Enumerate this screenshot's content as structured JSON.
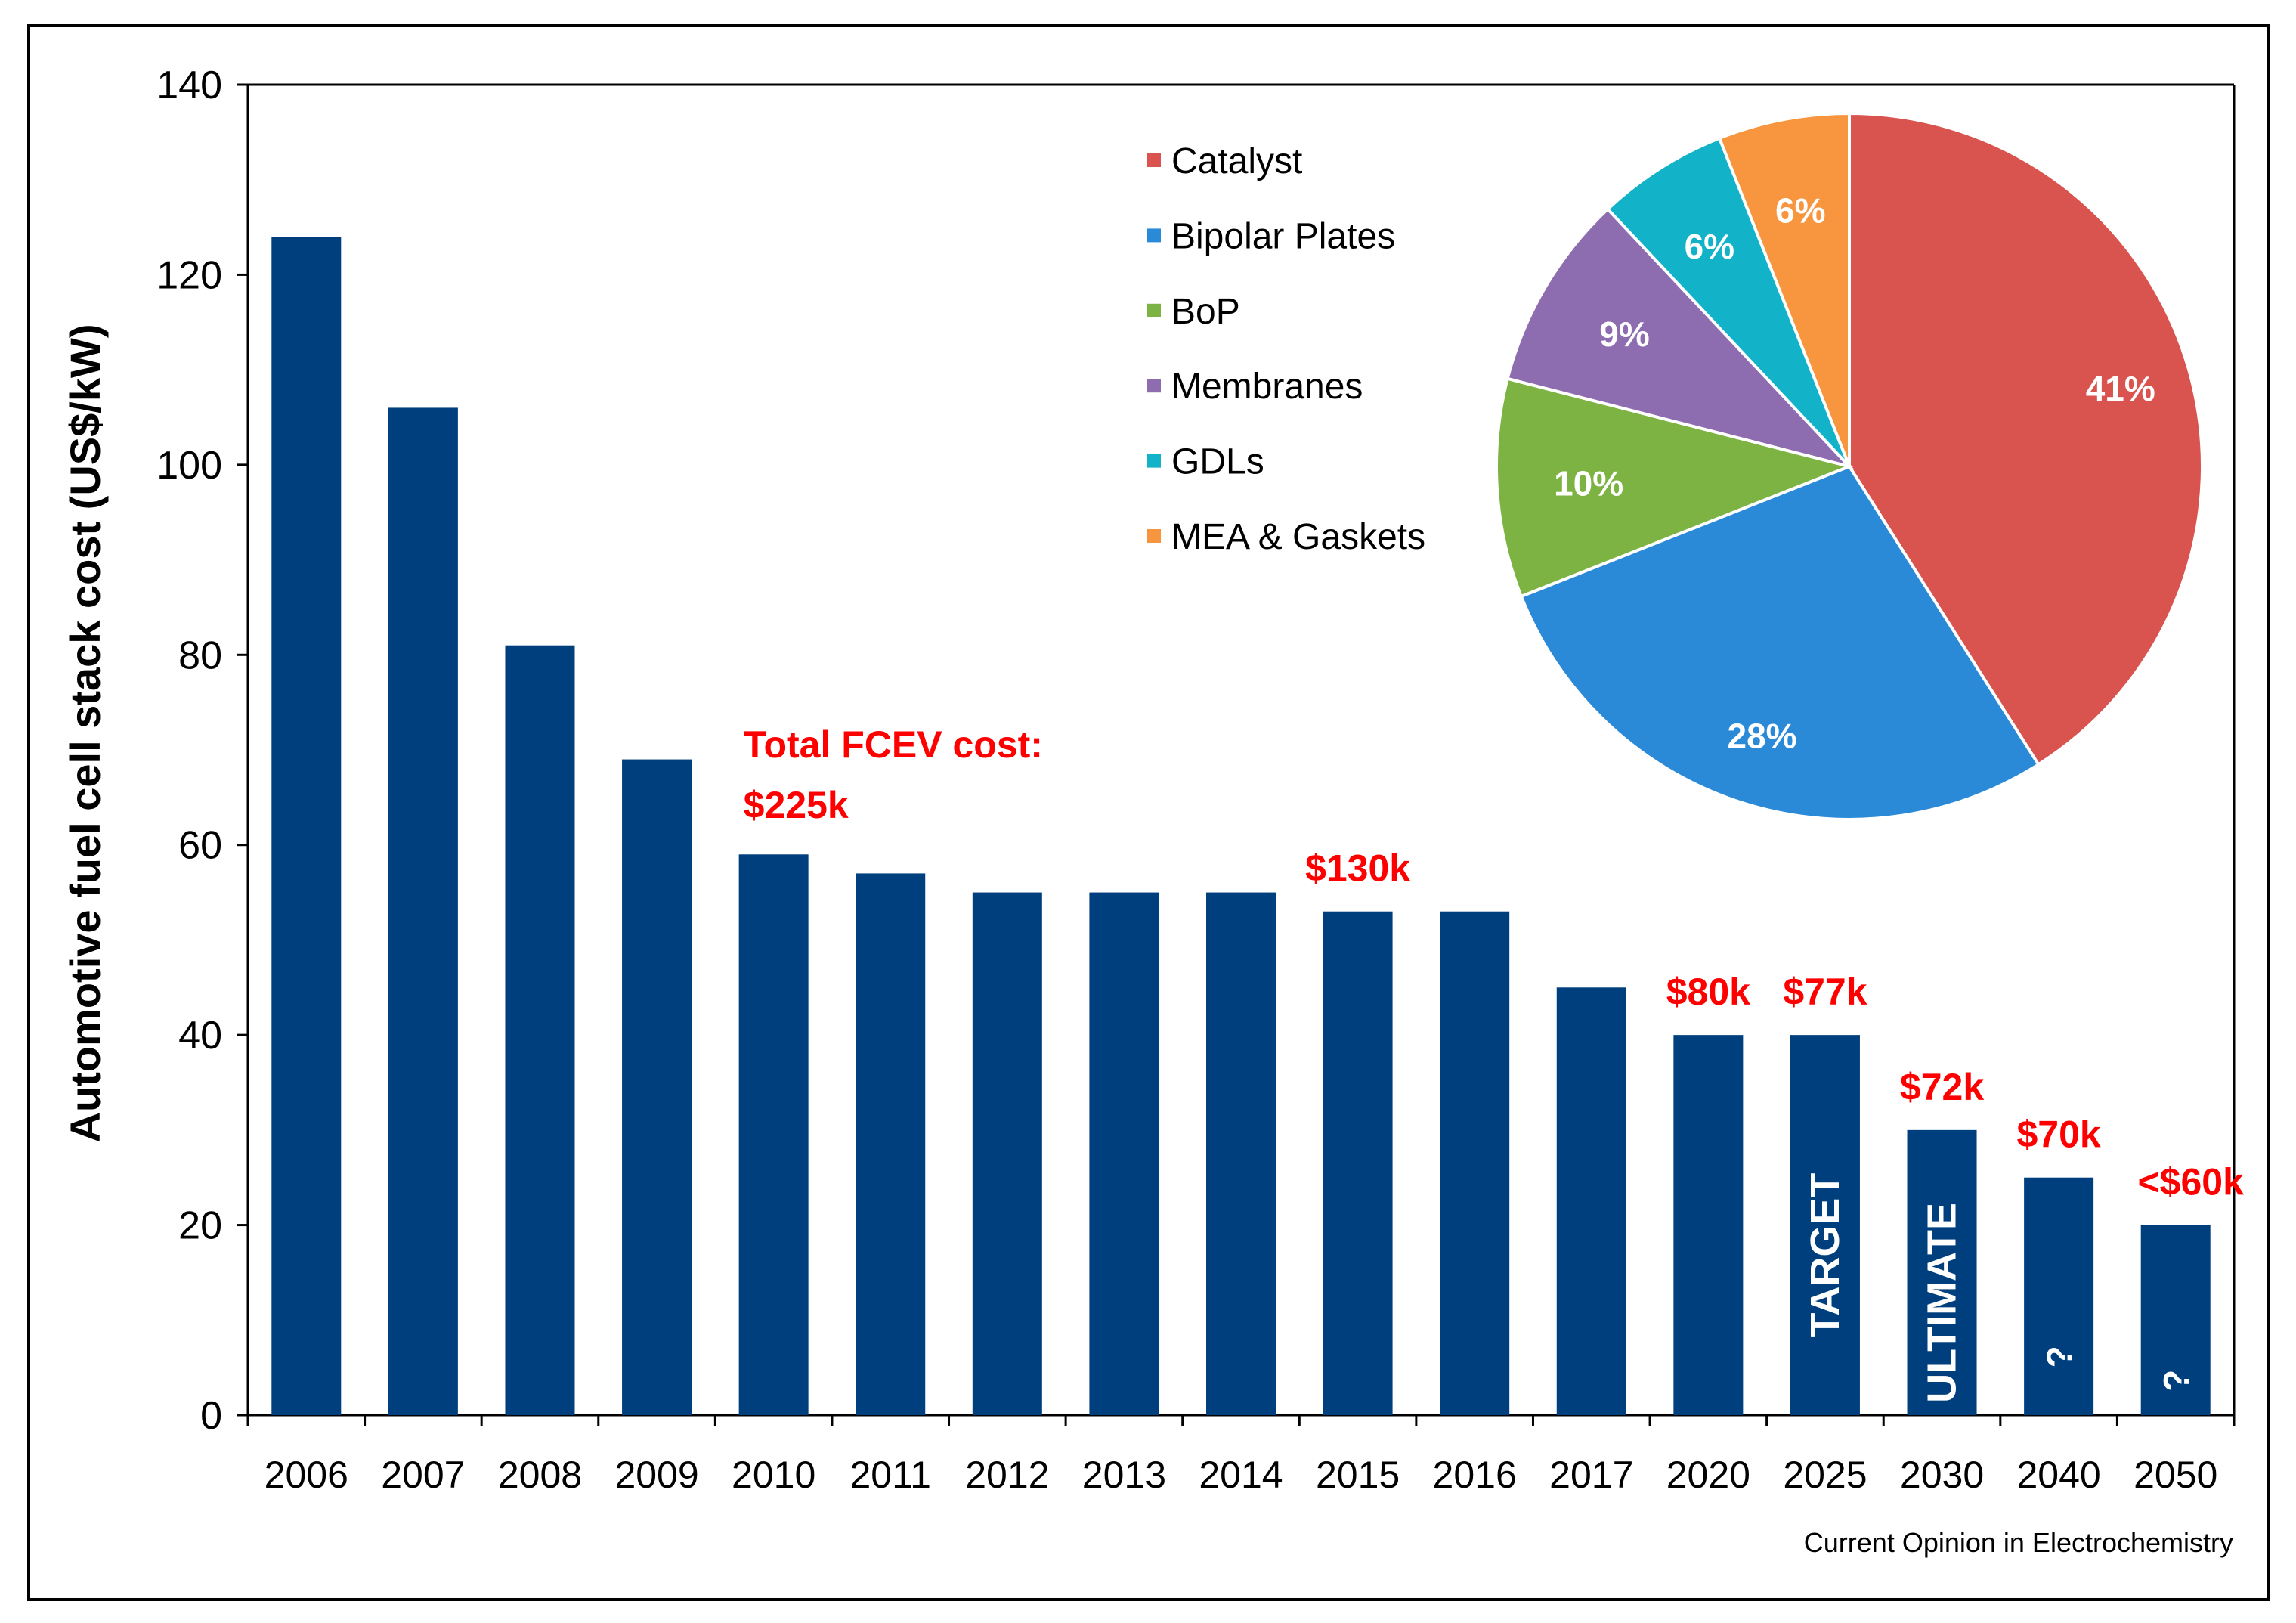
{
  "colors": {
    "bar": "#003f7d",
    "annotation": "#ff0000",
    "axis": "#000000",
    "frame": "#000000",
    "pie_label": "#ffffff"
  },
  "credit": "Current Opinion in Electrochemistry",
  "chart_data": [
    {
      "type": "bar",
      "title": "",
      "xlabel": "",
      "ylabel": "Automotive fuel cell stack cost (US$/kW)",
      "ylim": [
        0,
        140
      ],
      "yticks": [
        "0",
        "20",
        "40",
        "60",
        "80",
        "100",
        "120",
        "140"
      ],
      "grid": false,
      "categories": [
        "2006",
        "2007",
        "2008",
        "2009",
        "2010",
        "2011",
        "2012",
        "2013",
        "2014",
        "2015",
        "2016",
        "2017",
        "2020",
        "2025",
        "2030",
        "2040",
        "2050"
      ],
      "values": [
        124,
        106,
        81,
        69,
        59,
        57,
        55,
        55,
        55,
        53,
        53,
        45,
        40,
        40,
        30,
        25,
        20
      ],
      "bar_labels": [
        {
          "category": "2025",
          "text": "TARGET"
        },
        {
          "category": "2030",
          "text": "ULTIMATE"
        },
        {
          "category": "2040",
          "text": "?"
        },
        {
          "category": "2050",
          "text": "?"
        }
      ],
      "annotations": [
        {
          "category": "2010",
          "text_line1": "Total FCEV cost:",
          "text_line2": "$225k"
        },
        {
          "category": "2015",
          "text": "$130k"
        },
        {
          "category": "2020",
          "text": "$80k"
        },
        {
          "category": "2025",
          "text": "$77k"
        },
        {
          "category": "2030",
          "text": "$72k"
        },
        {
          "category": "2040",
          "text": "$70k"
        },
        {
          "category": "2050",
          "text": "<$60k"
        }
      ]
    },
    {
      "type": "pie",
      "title": "",
      "legend_position": "left",
      "slices": [
        {
          "label": "Catalyst",
          "value": 41,
          "text": "41%",
          "color": "#d9534f"
        },
        {
          "label": "Bipolar Plates",
          "value": 28,
          "text": "28%",
          "color": "#2b8ad8"
        },
        {
          "label": "BoP",
          "value": 10,
          "text": "10%",
          "color": "#7cb342"
        },
        {
          "label": "Membranes",
          "value": 9,
          "text": "9%",
          "color": "#8e6cb0"
        },
        {
          "label": "GDLs",
          "value": 6,
          "text": "6%",
          "color": "#12b2c8"
        },
        {
          "label": "MEA & Gaskets",
          "value": 6,
          "text": "6%",
          "color": "#f7963f"
        }
      ]
    }
  ]
}
